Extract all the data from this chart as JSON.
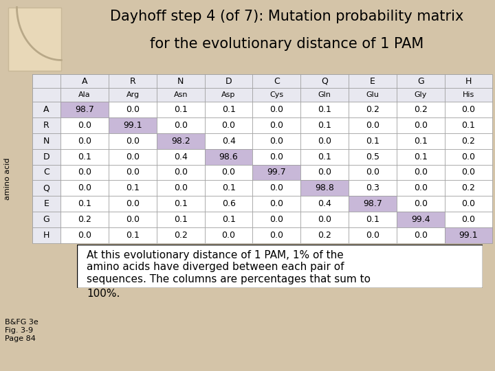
{
  "title_line1": "Dayhoff step 4 (of 7): Mutation probability matrix",
  "title_line2": "for the evolutionary distance of 1 PAM",
  "col_letters": [
    "A",
    "R",
    "N",
    "D",
    "C",
    "Q",
    "E",
    "G",
    "H"
  ],
  "col_names": [
    "Ala",
    "Arg",
    "Asn",
    "Asp",
    "Cys",
    "Gln",
    "Glu",
    "Gly",
    "His"
  ],
  "row_letters": [
    "A",
    "R",
    "N",
    "D",
    "C",
    "Q",
    "E",
    "G",
    "H"
  ],
  "matrix": [
    [
      98.7,
      0.0,
      0.1,
      0.1,
      0.0,
      0.1,
      0.2,
      0.2,
      0.0
    ],
    [
      0.0,
      99.1,
      0.0,
      0.0,
      0.0,
      0.1,
      0.0,
      0.0,
      0.1
    ],
    [
      0.0,
      0.0,
      98.2,
      0.4,
      0.0,
      0.0,
      0.1,
      0.1,
      0.2
    ],
    [
      0.1,
      0.0,
      0.4,
      98.6,
      0.0,
      0.1,
      0.5,
      0.1,
      0.0
    ],
    [
      0.0,
      0.0,
      0.0,
      0.0,
      99.7,
      0.0,
      0.0,
      0.0,
      0.0
    ],
    [
      0.0,
      0.1,
      0.0,
      0.1,
      0.0,
      98.8,
      0.3,
      0.0,
      0.2
    ],
    [
      0.1,
      0.0,
      0.1,
      0.6,
      0.0,
      0.4,
      98.7,
      0.0,
      0.0
    ],
    [
      0.2,
      0.0,
      0.1,
      0.1,
      0.0,
      0.0,
      0.1,
      99.4,
      0.0
    ],
    [
      0.0,
      0.1,
      0.2,
      0.0,
      0.0,
      0.2,
      0.0,
      0.0,
      99.1
    ]
  ],
  "diag_color": "#c8b8d8",
  "header_bg": "#e8e8f0",
  "row_header_bg": "#e8e8f0",
  "table_bg": "#ffffff",
  "outer_bg": "#d4c4a8",
  "note_box_text": "At this evolutionary distance of 1 PAM, 1% of the\namino acids have diverged between each pair of\nsequences. The columns are percentages that sum to",
  "note_outside_text": "100%.",
  "bottom_text": "B&FG 3e\nFig. 3-9\nPage 84",
  "ylabel": "amino acid",
  "title_fontsize": 15,
  "cell_fontsize": 9,
  "header_fontsize": 9,
  "note_fontsize": 11
}
